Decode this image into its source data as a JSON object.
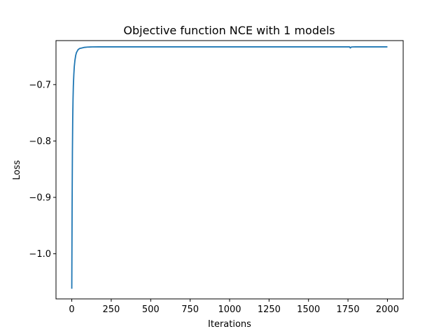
{
  "chart_data": {
    "type": "line",
    "title": "Objective function NCE with 1 models",
    "xlabel": "Iterations",
    "ylabel": "Loss",
    "xlim": [
      -100,
      2100
    ],
    "ylim": [
      -1.08,
      -0.622
    ],
    "xticks": [
      0,
      250,
      500,
      750,
      1000,
      1250,
      1500,
      1750,
      2000
    ],
    "xtick_labels": [
      "0",
      "250",
      "500",
      "750",
      "1000",
      "1250",
      "1500",
      "1750",
      "2000"
    ],
    "yticks": [
      -1.0,
      -0.9,
      -0.8,
      -0.7
    ],
    "ytick_labels": [
      "−1.0",
      "−0.9",
      "−0.8",
      "−0.7"
    ],
    "grid": false,
    "series": [
      {
        "color": "#1f77b4",
        "x": [
          0,
          2,
          4,
          6,
          8,
          10,
          13,
          16,
          20,
          25,
          30,
          40,
          50,
          65,
          80,
          100,
          130,
          170,
          250,
          500,
          750,
          1000,
          1250,
          1500,
          1700,
          1760,
          1765,
          1770,
          1780,
          1800,
          2000
        ],
        "y": [
          -1.062,
          -0.92,
          -0.82,
          -0.76,
          -0.725,
          -0.702,
          -0.682,
          -0.668,
          -0.657,
          -0.648,
          -0.643,
          -0.638,
          -0.636,
          -0.635,
          -0.634,
          -0.6335,
          -0.6332,
          -0.6331,
          -0.6331,
          -0.6331,
          -0.6331,
          -0.6331,
          -0.6331,
          -0.6331,
          -0.6331,
          -0.6331,
          -0.635,
          -0.6335,
          -0.6332,
          -0.6331,
          -0.6331
        ]
      }
    ]
  }
}
